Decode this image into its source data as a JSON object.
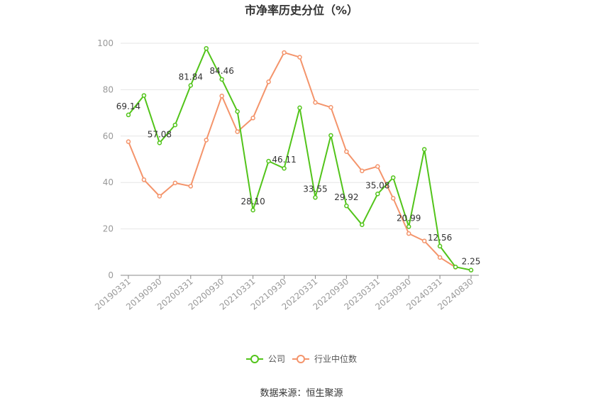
{
  "chart_data": {
    "type": "line",
    "title": "市净率历史分位（%）",
    "ylim": [
      0,
      100
    ],
    "y_ticks": [
      0,
      20,
      40,
      60,
      80,
      100
    ],
    "x": [
      "20190331",
      "20190630",
      "20190930",
      "20191231",
      "20200331",
      "20200630",
      "20200930",
      "20201231",
      "20210331",
      "20210630",
      "20210930",
      "20211231",
      "20220331",
      "20220630",
      "20220930",
      "20221231",
      "20230331",
      "20230630",
      "20230930",
      "20231231",
      "20240331",
      "20240630",
      "20240830"
    ],
    "x_tick_labels": [
      "20190331",
      "20190930",
      "20200331",
      "20200930",
      "20210331",
      "20210930",
      "20220331",
      "20220930",
      "20230331",
      "20230930",
      "20240331",
      "20240830"
    ],
    "series": [
      {
        "name": "公司",
        "color": "#52c41a",
        "values": [
          69.14,
          77.5,
          57.08,
          64.8,
          81.84,
          97.8,
          84.46,
          70.6,
          28.1,
          49.2,
          46.11,
          72.2,
          33.55,
          60.3,
          29.92,
          21.8,
          35.08,
          42.1,
          20.99,
          54.3,
          12.56,
          3.6,
          2.25
        ],
        "labels": [
          "69.14",
          "",
          "57.08",
          "",
          "81.84",
          "",
          "84.46",
          "",
          "28.10",
          "",
          "46.11",
          "",
          "33.55",
          "",
          "29.92",
          "",
          "35.08",
          "",
          "20.99",
          "",
          "12.56",
          "",
          "2.25"
        ]
      },
      {
        "name": "行业中位数",
        "color": "#f4946b",
        "values": [
          57.6,
          41.2,
          34.1,
          39.8,
          38.4,
          58.3,
          77.3,
          61.9,
          67.8,
          83.4,
          96.0,
          94.0,
          74.5,
          72.4,
          53.3,
          45.0,
          46.9,
          33.2,
          18.0,
          14.8,
          7.7,
          3.5,
          null
        ]
      }
    ],
    "legend_position": "bottom",
    "grid": true
  },
  "source": "数据来源：恒生聚源"
}
